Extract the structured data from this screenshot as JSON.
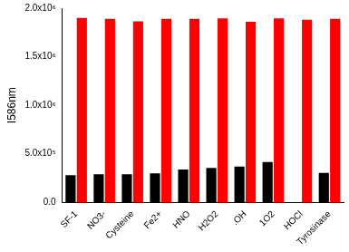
{
  "chart_data": {
    "type": "bar",
    "y_label": "I586nm",
    "categories": [
      "SF-1",
      "NO3-",
      "Cysteine",
      "Fe2+",
      "HNO",
      "H2O2",
      ".OH",
      "1O2",
      "HOCl",
      "Tyrosinase"
    ],
    "series": [
      {
        "color": "#000000",
        "values": [
          280000,
          290000,
          290000,
          300000,
          340000,
          355000,
          370000,
          415000,
          null,
          305000
        ]
      },
      {
        "color": "#ff0000",
        "values": [
          1900000,
          1890000,
          1865000,
          1890000,
          1890000,
          1895000,
          1860000,
          1895000,
          1880000,
          1890000
        ]
      }
    ],
    "ylim": [
      0,
      2000000
    ],
    "yticks": [
      {
        "value": 0,
        "label": "0.0"
      },
      {
        "value": 500000,
        "label": "5.0x10⁵"
      },
      {
        "value": 1000000,
        "label": "1.0x10⁶"
      },
      {
        "value": 1500000,
        "label": "1.5x10⁶"
      },
      {
        "value": 2000000,
        "label": "2.0x10⁶"
      }
    ],
    "grid": false
  }
}
